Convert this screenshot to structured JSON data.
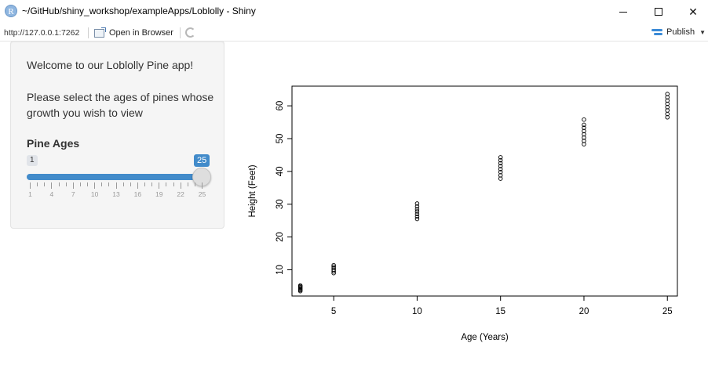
{
  "window": {
    "title": "~/GitHub/shiny_workshop/exampleApps/Loblolly - Shiny",
    "r_logo": "R"
  },
  "toolbar": {
    "url": "http://127.0.0.1:7262",
    "open_browser_label": "Open in Browser",
    "publish_label": "Publish"
  },
  "sidebar": {
    "welcome": "Welcome to our Loblolly Pine app!",
    "instructions": "Please select the ages of pines whose growth you wish to view",
    "slider_label": "Pine Ages",
    "slider": {
      "min": 1,
      "max": 25,
      "value_low": 1,
      "value_high": 25,
      "min_badge": "1",
      "max_badge": "25",
      "ticks": [
        "1",
        "4",
        "7",
        "10",
        "13",
        "16",
        "19",
        "22",
        "25"
      ]
    }
  },
  "chart_data": {
    "type": "scatter",
    "xlabel": "Age (Years)",
    "ylabel": "Height (Feet)",
    "xlim": [
      2.5,
      25.6
    ],
    "ylim": [
      2.0,
      66.0
    ],
    "xticks": [
      5,
      10,
      15,
      20,
      25
    ],
    "yticks": [
      10,
      20,
      30,
      40,
      50,
      60
    ],
    "grid": false,
    "points": [
      {
        "x": 3,
        "y": 3.5
      },
      {
        "x": 3,
        "y": 3.8
      },
      {
        "x": 3,
        "y": 4.1
      },
      {
        "x": 3,
        "y": 4.4
      },
      {
        "x": 3,
        "y": 4.7
      },
      {
        "x": 3,
        "y": 5.0
      },
      {
        "x": 3,
        "y": 5.2
      },
      {
        "x": 5,
        "y": 9.0
      },
      {
        "x": 5,
        "y": 9.5
      },
      {
        "x": 5,
        "y": 10.0
      },
      {
        "x": 5,
        "y": 10.5
      },
      {
        "x": 5,
        "y": 11.0
      },
      {
        "x": 5,
        "y": 11.4
      },
      {
        "x": 10,
        "y": 25.5
      },
      {
        "x": 10,
        "y": 26.2
      },
      {
        "x": 10,
        "y": 27.0
      },
      {
        "x": 10,
        "y": 27.8
      },
      {
        "x": 10,
        "y": 28.5
      },
      {
        "x": 10,
        "y": 29.3
      },
      {
        "x": 10,
        "y": 30.2
      },
      {
        "x": 15,
        "y": 37.8
      },
      {
        "x": 15,
        "y": 38.8
      },
      {
        "x": 15,
        "y": 39.8
      },
      {
        "x": 15,
        "y": 40.7
      },
      {
        "x": 15,
        "y": 41.6
      },
      {
        "x": 15,
        "y": 42.5
      },
      {
        "x": 15,
        "y": 43.4
      },
      {
        "x": 15,
        "y": 44.3
      },
      {
        "x": 20,
        "y": 48.3
      },
      {
        "x": 20,
        "y": 49.3
      },
      {
        "x": 20,
        "y": 50.3
      },
      {
        "x": 20,
        "y": 51.3
      },
      {
        "x": 20,
        "y": 52.3
      },
      {
        "x": 20,
        "y": 53.3
      },
      {
        "x": 20,
        "y": 54.2
      },
      {
        "x": 20,
        "y": 55.8
      },
      {
        "x": 25,
        "y": 56.5
      },
      {
        "x": 25,
        "y": 57.5
      },
      {
        "x": 25,
        "y": 58.6
      },
      {
        "x": 25,
        "y": 59.6
      },
      {
        "x": 25,
        "y": 60.6
      },
      {
        "x": 25,
        "y": 61.6
      },
      {
        "x": 25,
        "y": 62.6
      },
      {
        "x": 25,
        "y": 63.6
      }
    ]
  },
  "colors": {
    "accent": "#428bca",
    "well_bg": "#f5f5f5"
  }
}
